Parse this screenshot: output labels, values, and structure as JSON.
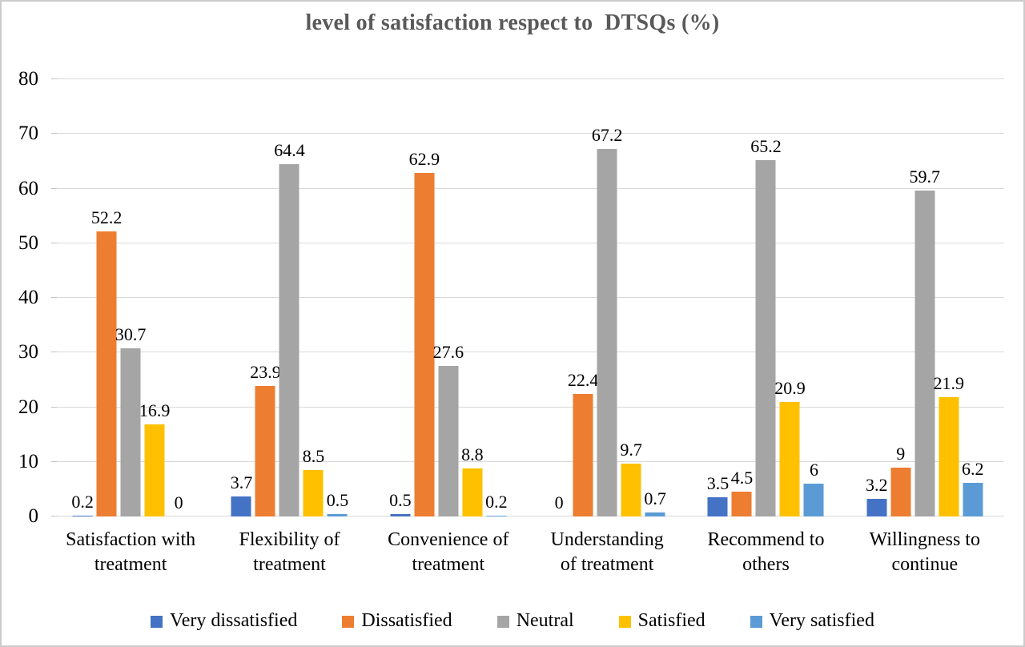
{
  "title": "level of satisfaction respect to  DTSQs (%)",
  "chart_data": {
    "type": "bar",
    "title": "level of satisfaction respect to  DTSQs (%)",
    "categories": [
      "Satisfaction with treatment",
      "Flexibility of treatment",
      "Convenience of treatment",
      "Understanding of treatment",
      "Recommend to others",
      "Willingness to continue"
    ],
    "categories_wrapped": [
      "Satisfaction with\ntreatment",
      "Flexibility of\ntreatment",
      "Convenience of\ntreatment",
      "Understanding\nof treatment",
      "Recommend to\nothers",
      "Willingness to\ncontinue"
    ],
    "series": [
      {
        "name": "Very dissatisfied",
        "color": "#4472C4",
        "values": [
          0.2,
          3.7,
          0.5,
          0,
          3.5,
          3.2
        ]
      },
      {
        "name": "Dissatisfied",
        "color": "#ED7D31",
        "values": [
          52.2,
          23.9,
          62.9,
          22.4,
          4.5,
          9
        ]
      },
      {
        "name": "Neutral",
        "color": "#A5A5A5",
        "values": [
          30.7,
          64.4,
          27.6,
          67.2,
          65.2,
          59.7
        ]
      },
      {
        "name": "Satisfied",
        "color": "#FFC000",
        "values": [
          16.9,
          8.5,
          8.8,
          9.7,
          20.9,
          21.9
        ]
      },
      {
        "name": "Very satisfied",
        "color": "#5B9BD5",
        "values": [
          0,
          0.5,
          0.2,
          0.7,
          6,
          6.2
        ]
      }
    ],
    "ylim": [
      0,
      80
    ],
    "yticks": [
      0,
      10,
      20,
      30,
      40,
      50,
      60,
      70,
      80
    ],
    "xlabel": "",
    "ylabel": "",
    "grid": true,
    "data_labels": true,
    "legend_position": "bottom",
    "gridline_color": "#D9D9D9",
    "title_color": "#595959"
  }
}
